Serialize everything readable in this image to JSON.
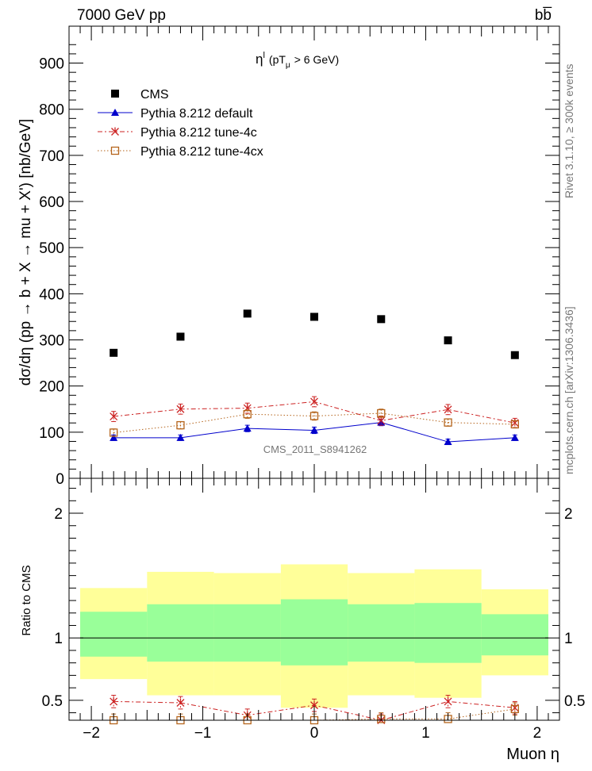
{
  "header": {
    "left": "7000 GeV pp",
    "right": "bb̅"
  },
  "side_text": {
    "top": "Rivet 3.1.10, ≥ 300k events",
    "bottom": "mcplots.cern.ch [arXiv:1306.3436]"
  },
  "chart_data": [
    {
      "type": "scatter",
      "title": "ηˡ (pTμ > 6 GeV)",
      "title_main": "η",
      "title_sup": "l",
      "title_rest": "(pT",
      "title_sub": "μ",
      "title_cut": "> 6 GeV)",
      "ylabel": "dσ/dη (pp → b + X → mu + X') [nb/GeV]",
      "watermark": "CMS_2011_S8941262",
      "xlim": [
        -2.2,
        2.2
      ],
      "ylim": [
        0,
        980
      ],
      "yticks": [
        0,
        100,
        200,
        300,
        400,
        500,
        600,
        700,
        800,
        900
      ],
      "legend_position": "top-left",
      "x": [
        -1.8,
        -1.2,
        -0.6,
        0.0,
        0.6,
        1.2,
        1.8
      ],
      "bin_edges": [
        -2.1,
        -1.5,
        -0.9,
        -0.3,
        0.3,
        0.9,
        1.5,
        2.1
      ],
      "series": [
        {
          "name": "CMS",
          "marker": "square",
          "color": "#000000",
          "values": [
            272,
            307,
            357,
            350,
            345,
            299,
            267
          ]
        },
        {
          "name": "Pythia 8.212 default",
          "marker": "triangle",
          "line": "solid",
          "color": "#0000cc",
          "values": [
            88,
            88,
            108,
            104,
            121,
            79,
            88
          ],
          "errors": [
            6,
            6,
            7,
            7,
            7,
            6,
            6
          ]
        },
        {
          "name": "Pythia 8.212 tune-4c",
          "marker": "star",
          "line": "dashdot",
          "color": "#cc2222",
          "values": [
            134,
            150,
            152,
            166,
            125,
            149,
            120
          ],
          "errors": [
            11,
            11,
            11,
            11,
            10,
            11,
            10
          ]
        },
        {
          "name": "Pythia 8.212 tune-4cx",
          "marker": "open-square",
          "line": "dotted",
          "color": "#b5651d",
          "values": [
            99,
            115,
            139,
            135,
            141,
            121,
            117
          ],
          "errors": [
            8,
            8,
            9,
            9,
            9,
            8,
            8
          ]
        }
      ]
    },
    {
      "type": "scatter",
      "ylabel": "Ratio to CMS",
      "xlabel": "Muon η",
      "xlim": [
        -2.2,
        2.2
      ],
      "ylim": [
        0.34,
        2.28
      ],
      "xticks": [
        -2,
        -1,
        0,
        1,
        2
      ],
      "xtick_labels": [
        "−2",
        "−1",
        "0",
        "1",
        "2"
      ],
      "yticks": [
        0.5,
        1,
        2
      ],
      "ytick_labels": [
        "0.5",
        "1",
        "2"
      ],
      "bands": {
        "inner": {
          "color": "#99ff99",
          "low": [
            0.85,
            0.81,
            0.81,
            0.78,
            0.81,
            0.8,
            0.86
          ],
          "high": [
            1.21,
            1.27,
            1.27,
            1.31,
            1.27,
            1.28,
            1.19
          ]
        },
        "outer": {
          "color": "#ffff99",
          "low": [
            0.67,
            0.54,
            0.54,
            0.44,
            0.54,
            0.52,
            0.7
          ],
          "high": [
            1.4,
            1.53,
            1.52,
            1.59,
            1.52,
            1.55,
            1.39
          ]
        }
      },
      "series": [
        {
          "name": "Pythia 8.212 tune-4c",
          "marker": "star",
          "line": "dashdot",
          "color": "#cc2222",
          "values": [
            0.49,
            0.48,
            0.38,
            0.46,
            0.34,
            0.49,
            0.44
          ],
          "errors": [
            0.05,
            0.05,
            0.05,
            0.05,
            0.05,
            0.05,
            0.05
          ]
        },
        {
          "name": "Pythia 8.212 tune-4cx",
          "marker": "open-square",
          "line": "dotted",
          "color": "#b5651d",
          "values": [
            0.34,
            0.34,
            0.34,
            0.34,
            0.35,
            0.35,
            0.43
          ],
          "errors": [
            0.05,
            0.05,
            0.05,
            0.05,
            0.05,
            0.05,
            0.05
          ]
        }
      ]
    }
  ]
}
